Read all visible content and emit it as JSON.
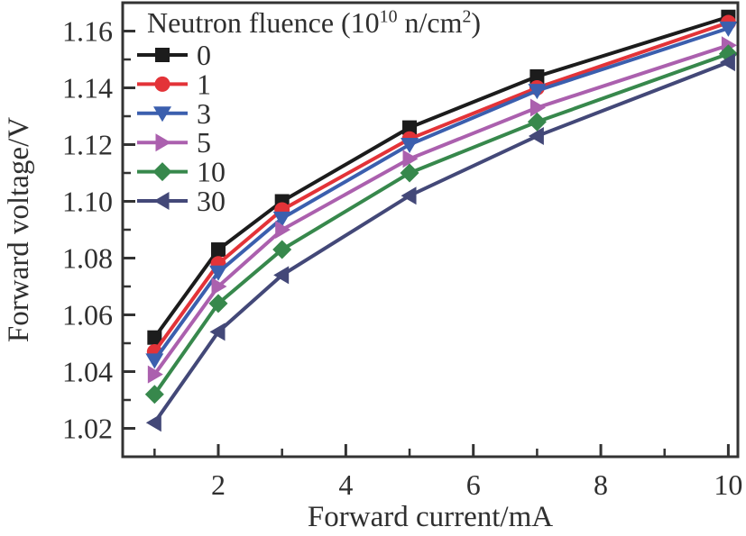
{
  "figure": {
    "xlabel": "Forward current/mA",
    "ylabel": "Forward voltage/V"
  },
  "legend": {
    "title_prefix": "Neutron fluence (10",
    "title_sup1": "10",
    "title_mid": " n/cm",
    "title_sup2": "2",
    "title_suffix": ")"
  },
  "chart_data": {
    "type": "line",
    "title": "",
    "xlabel": "Forward current/mA",
    "ylabel": "Forward voltage/V",
    "legend_title": "Neutron fluence (10^10 n/cm^2)",
    "legend_position": "top-left",
    "grid": false,
    "xlim": [
      0.5,
      10.15
    ],
    "ylim": [
      1.01,
      1.17
    ],
    "x": [
      1,
      2,
      3,
      5,
      7,
      10
    ],
    "series": [
      {
        "name": "0",
        "color": "#1c1c1c",
        "marker": "square",
        "values": [
          1.052,
          1.083,
          1.1,
          1.126,
          1.144,
          1.165
        ]
      },
      {
        "name": "1",
        "color": "#e33338",
        "marker": "circle",
        "values": [
          1.047,
          1.078,
          1.097,
          1.122,
          1.14,
          1.163
        ]
      },
      {
        "name": "3",
        "color": "#3b5fae",
        "marker": "triangle-down",
        "values": [
          1.044,
          1.075,
          1.094,
          1.12,
          1.139,
          1.161
        ]
      },
      {
        "name": "5",
        "color": "#ab60ae",
        "marker": "triangle-right",
        "values": [
          1.039,
          1.07,
          1.09,
          1.115,
          1.133,
          1.155
        ]
      },
      {
        "name": "10",
        "color": "#37884c",
        "marker": "diamond",
        "values": [
          1.032,
          1.064,
          1.083,
          1.11,
          1.128,
          1.152
        ]
      },
      {
        "name": "30",
        "color": "#434878",
        "marker": "triangle-left",
        "values": [
          1.022,
          1.054,
          1.074,
          1.102,
          1.123,
          1.149
        ]
      }
    ],
    "x_major_ticks": [
      2,
      4,
      6,
      8,
      10
    ],
    "x_tick_labels": [
      "2",
      "4",
      "6",
      "8",
      "10"
    ],
    "x_minor_ticks": [
      1,
      3,
      5,
      7,
      9
    ],
    "y_major_ticks": [
      1.02,
      1.04,
      1.06,
      1.08,
      1.1,
      1.12,
      1.14,
      1.16
    ],
    "y_tick_labels": [
      "1.02",
      "1.04",
      "1.06",
      "1.08",
      "1.10",
      "1.12",
      "1.14",
      "1.16"
    ],
    "y_minor_ticks": [
      1.03,
      1.05,
      1.07,
      1.09,
      1.11,
      1.13,
      1.15
    ],
    "frame_color": "#333333",
    "text_color": "#2f2f2f"
  }
}
